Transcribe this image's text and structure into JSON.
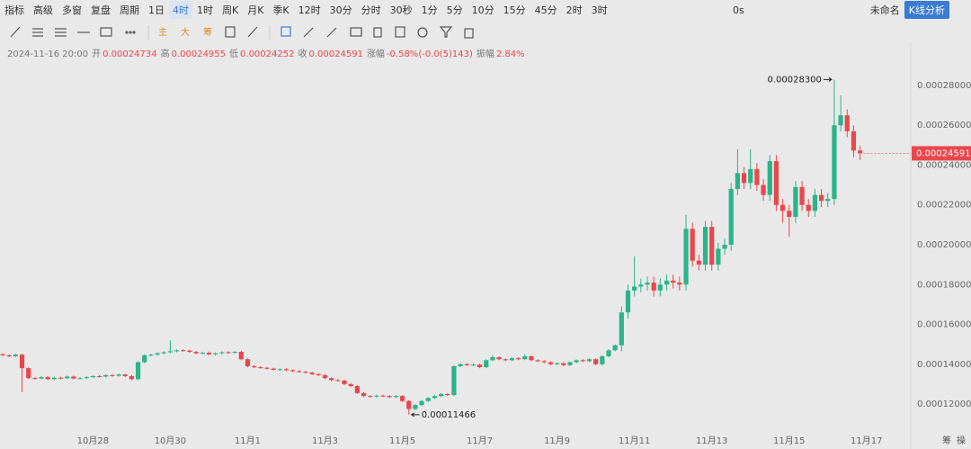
{
  "toolbar": {
    "tools": [
      "指标",
      "高级",
      "多窗",
      "复盘",
      "周期"
    ],
    "intervals": [
      {
        "label": "1日"
      },
      {
        "label": "4时",
        "active": true
      },
      {
        "label": "1时"
      },
      {
        "label": "周K"
      },
      {
        "label": "月K"
      },
      {
        "label": "季K"
      },
      {
        "label": "12时"
      },
      {
        "label": "30分"
      },
      {
        "label": "分时"
      },
      {
        "label": "30秒"
      },
      {
        "label": "1分"
      },
      {
        "label": "5分"
      },
      {
        "label": "10分"
      },
      {
        "label": "15分"
      },
      {
        "label": "45分"
      },
      {
        "label": "2时"
      },
      {
        "label": "3时"
      }
    ],
    "timer": "0s",
    "layout_name": "未命名",
    "analysis_button": "K线分析",
    "indicators": [
      "主",
      "大",
      "筹"
    ]
  },
  "info": {
    "datetime": "2024-11-16 20:00",
    "items": [
      {
        "label": "开",
        "value": "0.00024734"
      },
      {
        "label": "高",
        "value": "0.00024955"
      },
      {
        "label": "低",
        "value": "0.00024252"
      },
      {
        "label": "收",
        "value": "0.00024591"
      },
      {
        "label": "涨幅",
        "value": "-0.58%(-0.0(5)143)"
      },
      {
        "label": "振幅",
        "value": "2.84%"
      }
    ]
  },
  "footer": [
    "筹",
    "操"
  ],
  "chart_data": {
    "type": "candlestick",
    "up_color": "#2bb38a",
    "down_color": "#e8474c",
    "grid": false,
    "ylim": [
      0.000106,
      0.000294
    ],
    "yticks": [
      {
        "value": 0.00012,
        "label": "0.00012000"
      },
      {
        "value": 0.00014,
        "label": "0.00014000"
      },
      {
        "value": 0.00016,
        "label": "0.00016000"
      },
      {
        "value": 0.00018,
        "label": "0.00018000"
      },
      {
        "value": 0.0002,
        "label": "0.00020000"
      },
      {
        "value": 0.00022,
        "label": "0.00022000"
      },
      {
        "value": 0.00024,
        "label": "0.00024000"
      },
      {
        "value": 0.00026,
        "label": "0.00026000"
      },
      {
        "value": 0.00028,
        "label": "0.00028000"
      }
    ],
    "annotations": [
      {
        "label": "0.00028300",
        "value": 0.000283,
        "index": 129
      },
      {
        "label": "0.00011466",
        "value": 0.00011466,
        "index": 63
      }
    ],
    "categories": [
      null,
      null,
      null,
      null,
      null,
      null,
      null,
      null,
      null,
      null,
      null,
      null,
      null,
      null,
      "10月28",
      null,
      null,
      null,
      null,
      null,
      null,
      null,
      null,
      null,
      null,
      null,
      "10月30",
      null,
      null,
      null,
      null,
      null,
      null,
      null,
      null,
      null,
      null,
      null,
      "11月1",
      null,
      null,
      null,
      null,
      null,
      null,
      null,
      null,
      null,
      null,
      null,
      "11月3",
      null,
      null,
      null,
      null,
      null,
      null,
      null,
      null,
      null,
      null,
      null,
      "11月5",
      null,
      null,
      null,
      null,
      null,
      null,
      null,
      null,
      null,
      null,
      null,
      "11月7",
      null,
      null,
      null,
      null,
      null,
      null,
      null,
      null,
      null,
      null,
      null,
      "11月9",
      null,
      null,
      null,
      null,
      null,
      null,
      null,
      null,
      null,
      null,
      null,
      "11月11",
      null,
      null,
      null,
      null,
      null,
      null,
      null,
      null,
      null,
      null,
      null,
      "11月13",
      null,
      null,
      null,
      null,
      null,
      null,
      null,
      null,
      null,
      null,
      null,
      "11月15",
      null,
      null,
      null,
      null,
      null,
      null,
      null,
      null,
      null,
      null,
      null,
      "11月17"
    ],
    "open": [
      0.000145,
      0.0001445,
      0.000144,
      0.0001448,
      0.000138,
      0.000133,
      0.0001328,
      0.0001335,
      0.0001325,
      0.0001332,
      0.000133,
      0.0001338,
      0.0001328,
      0.000133,
      0.0001335,
      0.000134,
      0.0001338,
      0.0001345,
      0.0001342,
      0.0001348,
      0.000134,
      0.0001325,
      0.000141,
      0.0001445,
      0.0001448,
      0.0001455,
      0.000146,
      0.0001465,
      0.000147,
      0.0001468,
      0.0001462,
      0.0001455,
      0.0001458,
      0.000145,
      0.0001455,
      0.000146,
      0.0001458,
      0.0001462,
      0.0001425,
      0.000139,
      0.0001385,
      0.0001382,
      0.0001378,
      0.0001372,
      0.0001375,
      0.000137,
      0.0001365,
      0.0001362,
      0.0001358,
      0.000135,
      0.0001345,
      0.000133,
      0.000132,
      0.0001318,
      0.00013,
      0.000129,
      0.0001255,
      0.000124,
      0.0001238,
      0.0001242,
      0.000124,
      0.0001235,
      0.000124,
      0.0001215,
      0.0001175,
      0.0001195,
      0.0001215,
      0.000123,
      0.000124,
      0.000125,
      0.0001245,
      0.000139,
      0.00014,
      0.0001395,
      0.0001398,
      0.0001385,
      0.000142,
      0.0001435,
      0.0001425,
      0.000142,
      0.000143,
      0.0001425,
      0.000144,
      0.000142,
      0.0001415,
      0.000141,
      0.00014,
      0.0001405,
      0.0001395,
      0.000141,
      0.000142,
      0.0001415,
      0.0001425,
      0.00014,
      0.000144,
      0.000147,
      0.0001495,
      0.000166,
      0.000177,
      0.000179,
      0.00018,
      0.000181,
      0.000177,
      0.00018,
      0.000182,
      0.000181,
      0.00018,
      0.000208,
      0.000192,
      0.00019,
      0.000209,
      0.00019,
      0.000198,
      0.0002,
      0.000228,
      0.000236,
      0.000231,
      0.000238,
      0.00023,
      0.000225,
      0.000242,
      0.00022,
      0.000217,
      0.000214,
      0.000229,
      0.00022,
      0.000217,
      0.000225,
      0.000222,
      0.000223,
      0.00026,
      0.000265,
      0.000257,
      0.00024734,
      null
    ],
    "high": [
      0.0001455,
      0.000145,
      0.0001453,
      0.0001453,
      0.0001385,
      0.0001335,
      0.000134,
      0.000134,
      0.0001337,
      0.0001337,
      0.0001343,
      0.0001343,
      0.0001335,
      0.000134,
      0.0001345,
      0.0001345,
      0.000135,
      0.000135,
      0.0001353,
      0.0001353,
      0.0001345,
      0.0001415,
      0.000145,
      0.0001453,
      0.000146,
      0.0001465,
      0.000152,
      0.0001475,
      0.0001475,
      0.0001473,
      0.0001467,
      0.0001463,
      0.0001463,
      0.000146,
      0.0001465,
      0.0001465,
      0.0001467,
      0.0001467,
      0.000143,
      0.0001395,
      0.000139,
      0.0001387,
      0.0001383,
      0.000138,
      0.000138,
      0.0001375,
      0.000137,
      0.0001367,
      0.0001363,
      0.0001355,
      0.000135,
      0.0001335,
      0.0001325,
      0.0001323,
      0.0001305,
      0.0001295,
      0.000126,
      0.0001245,
      0.0001247,
      0.0001247,
      0.0001245,
      0.0001245,
      0.0001245,
      0.000122,
      0.00012,
      0.000122,
      0.0001235,
      0.0001245,
      0.0001255,
      0.0001255,
      0.0001395,
      0.0001405,
      0.0001405,
      0.0001403,
      0.0001403,
      0.0001425,
      0.0001445,
      0.000144,
      0.000143,
      0.0001435,
      0.0001435,
      0.000145,
      0.0001445,
      0.0001425,
      0.000142,
      0.0001415,
      0.000141,
      0.000141,
      0.0001415,
      0.0001425,
      0.0001425,
      0.000143,
      0.000143,
      0.0001445,
      0.0001475,
      0.00015,
      0.000169,
      0.00018,
      0.000194,
      0.000183,
      0.000184,
      0.000184,
      0.000183,
      0.000185,
      0.000185,
      0.000184,
      0.000215,
      0.000211,
      0.000195,
      0.000212,
      0.000212,
      0.000201,
      0.000203,
      0.000231,
      0.000248,
      0.000239,
      0.000248,
      0.000241,
      0.000233,
      0.000245,
      0.000245,
      0.000223,
      0.00022,
      0.000232,
      0.000232,
      0.000223,
      0.000228,
      0.000228,
      0.000226,
      0.000283,
      0.000275,
      0.000268,
      0.00026,
      0.00024955,
      null
    ],
    "low": [
      0.000144,
      0.0001435,
      0.0001435,
      0.000126,
      0.0001325,
      0.0001323,
      0.0001323,
      0.000132,
      0.000132,
      0.0001325,
      0.0001325,
      0.0001323,
      0.0001323,
      0.0001325,
      0.000133,
      0.0001333,
      0.0001333,
      0.0001337,
      0.0001337,
      0.0001335,
      0.000132,
      0.000132,
      0.0001405,
      0.000144,
      0.0001443,
      0.000145,
      0.0001455,
      0.000146,
      0.0001463,
      0.0001457,
      0.000145,
      0.000145,
      0.0001445,
      0.0001445,
      0.000145,
      0.0001453,
      0.0001453,
      0.000142,
      0.0001385,
      0.000138,
      0.0001377,
      0.0001373,
      0.0001367,
      0.0001367,
      0.0001365,
      0.000136,
      0.0001357,
      0.0001353,
      0.0001345,
      0.000134,
      0.0001325,
      0.0001315,
      0.0001313,
      0.0001295,
      0.0001285,
      0.000125,
      0.0001235,
      0.0001233,
      0.0001233,
      0.0001235,
      0.000123,
      0.000123,
      0.000121,
      0.00011466,
      0.000117,
      0.000119,
      0.000121,
      0.0001225,
      0.0001235,
      0.000124,
      0.000124,
      0.0001385,
      0.000139,
      0.000139,
      0.000138,
      0.000138,
      0.0001415,
      0.000142,
      0.0001415,
      0.0001415,
      0.000142,
      0.000142,
      0.0001415,
      0.000141,
      0.0001405,
      0.0001395,
      0.0001395,
      0.000139,
      0.000139,
      0.0001405,
      0.000141,
      0.000141,
      0.0001395,
      0.0001395,
      0.0001435,
      0.0001465,
      0.0001465,
      0.000163,
      0.000174,
      0.000176,
      0.000177,
      0.000174,
      0.000174,
      0.000177,
      0.000178,
      0.000177,
      0.000177,
      0.000189,
      0.000187,
      0.000187,
      0.000187,
      0.000187,
      0.000195,
      0.000197,
      0.000225,
      0.000228,
      0.000228,
      0.000227,
      0.000222,
      0.000222,
      0.000217,
      0.000211,
      0.000204,
      0.000211,
      0.000217,
      0.000214,
      0.000214,
      0.000219,
      0.000219,
      0.00022,
      0.000257,
      0.000254,
      0.000244,
      0.00024252,
      null
    ],
    "close": [
      0.0001445,
      0.000144,
      0.0001448,
      0.000138,
      0.000133,
      0.0001328,
      0.0001335,
      0.0001325,
      0.0001332,
      0.000133,
      0.0001338,
      0.0001328,
      0.000133,
      0.0001335,
      0.000134,
      0.0001338,
      0.0001345,
      0.0001342,
      0.0001348,
      0.000134,
      0.0001325,
      0.000141,
      0.0001445,
      0.0001448,
      0.0001455,
      0.000146,
      0.0001465,
      0.000147,
      0.0001468,
      0.0001462,
      0.0001455,
      0.0001458,
      0.000145,
      0.0001455,
      0.000146,
      0.0001458,
      0.0001462,
      0.0001425,
      0.000139,
      0.0001385,
      0.0001382,
      0.0001378,
      0.0001372,
      0.0001375,
      0.000137,
      0.0001365,
      0.0001362,
      0.0001358,
      0.000135,
      0.0001345,
      0.000133,
      0.000132,
      0.0001318,
      0.00013,
      0.000129,
      0.0001255,
      0.000124,
      0.0001238,
      0.0001242,
      0.000124,
      0.0001235,
      0.000124,
      0.0001215,
      0.0001175,
      0.0001195,
      0.0001215,
      0.000123,
      0.000124,
      0.000125,
      0.0001245,
      0.000139,
      0.00014,
      0.0001395,
      0.0001398,
      0.0001385,
      0.000142,
      0.0001435,
      0.0001425,
      0.000142,
      0.000143,
      0.0001425,
      0.000144,
      0.000142,
      0.0001415,
      0.000141,
      0.00014,
      0.0001405,
      0.0001395,
      0.000141,
      0.000142,
      0.0001415,
      0.0001425,
      0.00014,
      0.000144,
      0.000147,
      0.0001495,
      0.000166,
      0.000177,
      0.000179,
      0.00018,
      0.000181,
      0.000177,
      0.00018,
      0.000182,
      0.000181,
      0.00018,
      0.000208,
      0.000192,
      0.00019,
      0.000209,
      0.00019,
      0.000198,
      0.0002,
      0.000228,
      0.000236,
      0.000231,
      0.000238,
      0.00023,
      0.000225,
      0.000242,
      0.00022,
      0.000217,
      0.000214,
      0.000229,
      0.00022,
      0.000217,
      0.000225,
      0.000222,
      0.000223,
      0.00026,
      0.000265,
      0.000257,
      0.0002473,
      0.00024591,
      null
    ]
  }
}
